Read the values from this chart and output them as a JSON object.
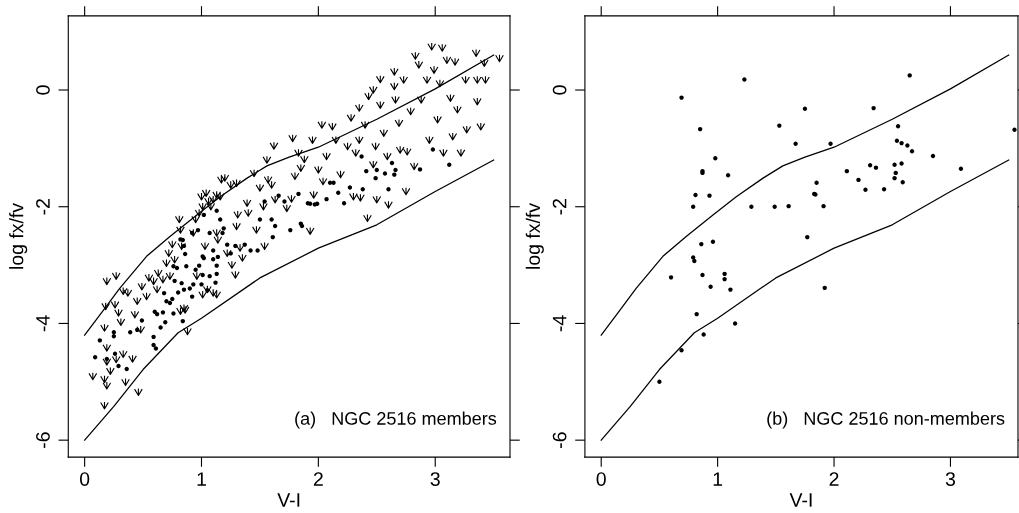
{
  "chart_data": [
    {
      "type": "scatter",
      "xlabel": "V-I",
      "ylabel": "log fx/fv",
      "xlim": [
        -0.14,
        3.64
      ],
      "ylim": [
        -6.29,
        1.27
      ],
      "xticks": [
        0,
        1,
        2,
        3
      ],
      "yticks": [
        -6,
        -4,
        -2,
        0
      ],
      "grid": false,
      "annotations": [
        "(a)   NGC 2516 members"
      ],
      "series": [
        {
          "marker": "circle",
          "color": "#000000",
          "x": [
            0.09,
            0.13,
            0.19,
            0.25,
            0.25,
            0.26,
            0.29,
            0.36,
            0.39,
            0.45,
            0.49,
            0.59,
            0.59,
            0.61,
            0.6,
            0.62,
            0.65,
            0.67,
            0.69,
            0.68,
            0.7,
            0.73,
            0.75,
            0.76,
            0.77,
            0.79,
            0.8,
            0.83,
            0.84,
            0.85,
            0.82,
            0.84,
            0.85,
            0.86,
            0.9,
            0.92,
            0.93,
            0.92,
            0.95,
            0.97,
            1.0,
            1.01,
            1.02,
            1.01,
            1.05,
            1.07,
            1.07,
            1.1,
            1.1,
            1.12,
            1.13,
            1.13,
            1.14,
            1.13,
            1.16,
            1.18,
            1.19,
            1.22,
            1.25,
            1.29,
            1.37,
            1.42,
            1.48,
            1.5,
            1.54,
            1.6,
            1.61,
            1.63,
            1.66,
            1.71,
            1.76,
            1.83,
            1.85,
            1.86,
            1.91,
            1.93,
            1.97,
            1.99,
            2.07,
            2.1,
            2.13,
            2.17,
            2.22,
            2.27,
            2.37,
            2.38,
            2.41,
            2.49,
            2.5,
            2.57,
            2.6,
            2.63,
            2.65,
            2.66,
            2.87,
            2.98,
            3.12,
            0.98,
            0.87,
            0.76,
            1.02
          ],
          "values": [
            -4.58,
            -4.29,
            -4.61,
            -4.22,
            -4.15,
            -4.52,
            -4.73,
            -4.78,
            -4.15,
            -4.11,
            -3.95,
            -4.23,
            -4.37,
            -4.43,
            -3.8,
            -3.84,
            -4.07,
            -3.81,
            -3.98,
            -3.48,
            -3.62,
            -3.65,
            -3.58,
            -3.83,
            -3.27,
            -3.05,
            -3.47,
            -3.31,
            -3.96,
            -3.42,
            -2.56,
            -2.57,
            -2.67,
            -2.81,
            -3.4,
            -3.54,
            -3.33,
            -2.45,
            -3.08,
            -2.4,
            -3.33,
            -3.17,
            -2.14,
            -2.85,
            -3.43,
            -2.45,
            -3.19,
            -2.75,
            -2.9,
            -3.3,
            -3.01,
            -3.15,
            -2.86,
            -2.07,
            -2.22,
            -2.45,
            -2.37,
            -2.65,
            -2.8,
            -2.67,
            -2.65,
            -2.75,
            -2.75,
            -2.22,
            -1.91,
            -2.22,
            -2.52,
            -2.33,
            -1.81,
            -1.91,
            -2.4,
            -1.78,
            -2.29,
            -2.33,
            -1.94,
            -1.95,
            -1.96,
            -1.95,
            -1.87,
            -1.59,
            -1.59,
            -1.76,
            -1.94,
            -1.67,
            -1.14,
            -1.7,
            -1.39,
            -1.51,
            -1.37,
            -1.43,
            -1.7,
            -1.25,
            -1.45,
            -1.37,
            -1.36,
            -1.02,
            -1.28,
            -3.01,
            -3.02,
            -3.02,
            -2.88
          ]
        },
        {
          "marker": "cross",
          "color": "#000000",
          "x": [
            0.07,
            0.17,
            0.19,
            0.17,
            0.19,
            0.22,
            0.27,
            0.33,
            0.35,
            0.41,
            0.46,
            0.19,
            0.17,
            0.18,
            0.19,
            0.27,
            0.26,
            0.29,
            0.31,
            0.33,
            0.37,
            0.43,
            0.45,
            0.48,
            0.49,
            0.53,
            0.55,
            0.59,
            0.62,
            0.63,
            0.67,
            0.7,
            0.72,
            0.73,
            0.75,
            0.77,
            0.81,
            0.82,
            0.83,
            0.86,
            0.88,
            0.82,
            0.85,
            0.93,
            0.95,
            0.98,
            1.0,
            1.01,
            1.04,
            1.06,
            1.08,
            1.1,
            1.13,
            1.16,
            1.17,
            1.2,
            1.25,
            1.3,
            1.13,
            1.1,
            1.05,
            1.01,
            0.96,
            1.03,
            1.13,
            1.14,
            1.22,
            1.26,
            1.29,
            1.31,
            1.3,
            1.33,
            1.35,
            1.39,
            1.4,
            1.45,
            1.47,
            1.5,
            1.53,
            1.54,
            1.56,
            1.57,
            1.6,
            1.63,
            1.62,
            1.73,
            1.77,
            1.78,
            1.8,
            1.83,
            1.85,
            1.88,
            1.93,
            1.95,
            2.0,
            1.96,
            2.04,
            2.03,
            2.07,
            2.12,
            2.15,
            2.19,
            2.25,
            2.28,
            2.3,
            2.32,
            2.35,
            2.35,
            2.36,
            2.4,
            2.42,
            2.43,
            2.47,
            2.47,
            2.49,
            2.5,
            2.53,
            2.53,
            2.56,
            2.59,
            2.6,
            2.65,
            2.65,
            2.66,
            2.69,
            2.7,
            2.73,
            2.75,
            2.76,
            2.79,
            2.83,
            2.82,
            2.86,
            2.88,
            2.93,
            2.95,
            2.97,
            2.99,
            3.02,
            3.04,
            3.06,
            3.07,
            3.1,
            3.13,
            3.15,
            3.17,
            3.19,
            3.22,
            3.26,
            3.27,
            3.35,
            3.36,
            3.36,
            3.39,
            3.42,
            3.43,
            3.55
          ],
          "values": [
            -4.91,
            -5.41,
            -5.07,
            -4.96,
            -4.66,
            -4.82,
            -4.62,
            -4.53,
            -5.01,
            -4.61,
            -5.18,
            -4.42,
            -4.08,
            -3.71,
            -3.28,
            -3.19,
            -3.68,
            -3.82,
            -3.98,
            -3.45,
            -3.48,
            -3.85,
            -3.62,
            -4.11,
            -3.37,
            -3.54,
            -3.22,
            -3.28,
            -3.42,
            -3.14,
            -3.25,
            -2.97,
            -2.8,
            -3.19,
            -2.65,
            -2.91,
            -2.22,
            -2.4,
            -2.68,
            -3.77,
            -4.14,
            -3.79,
            -3.74,
            -2.45,
            -2.22,
            -2.11,
            -1.83,
            -2.0,
            -1.77,
            -1.91,
            -2.0,
            -1.88,
            -1.8,
            -1.83,
            -1.54,
            -1.51,
            -1.63,
            -1.6,
            -3.51,
            -3.48,
            -3.42,
            -3.51,
            -3.19,
            -2.68,
            -2.45,
            -2.57,
            -2.8,
            -3.0,
            -3.17,
            -2.14,
            -2.34,
            -2.71,
            -2.88,
            -1.94,
            -2.11,
            -1.43,
            -2.4,
            -1.68,
            -2.0,
            -2.68,
            -1.2,
            -1.54,
            -1.63,
            -1.88,
            -0.96,
            -2.03,
            -1.87,
            -0.83,
            -1.48,
            -1.08,
            -1.34,
            -1.19,
            -2.42,
            -0.86,
            -1.37,
            -1.8,
            -1.57,
            -0.6,
            -1.14,
            -0.63,
            -0.86,
            -1.45,
            -0.97,
            -0.48,
            -1.83,
            -1.08,
            -0.86,
            -0.31,
            -1.85,
            -0.6,
            -2.2,
            -0.11,
            0.0,
            -1.28,
            -0.97,
            -1.88,
            0.18,
            -0.26,
            -0.74,
            -1.14,
            -1.97,
            0.31,
            0.06,
            -0.17,
            -0.57,
            -1.03,
            0.17,
            -1.74,
            -1.06,
            -0.37,
            0.58,
            -1.31,
            0.43,
            -0.17,
            0.17,
            -0.86,
            0.74,
            0.34,
            -0.51,
            0.11,
            0.72,
            -1.08,
            0.51,
            -0.14,
            -0.8,
            0.48,
            -0.34,
            -1.08,
            0.17,
            -0.68,
            0.63,
            -0.2,
            0.17,
            -0.63,
            0.46,
            0.17,
            0.54
          ]
        },
        {
          "type": "line",
          "marker": "none",
          "color": "#000000",
          "x": [
            0,
            0.15,
            0.3,
            0.53,
            0.73,
            0.96,
            1.16,
            1.39,
            1.56,
            1.75,
            2.0,
            2.5,
            3.0,
            3.5
          ],
          "values": [
            -4.2,
            -3.8,
            -3.4,
            -2.85,
            -2.51,
            -2.14,
            -1.83,
            -1.51,
            -1.3,
            -1.15,
            -0.98,
            -0.5,
            0.02,
            0.6
          ]
        },
        {
          "type": "line",
          "marker": "none",
          "color": "#000000",
          "x": [
            0,
            0.25,
            0.5,
            0.8,
            1,
            1.5,
            2,
            2.5,
            3,
            3.5
          ],
          "values": [
            -6.0,
            -5.42,
            -4.79,
            -4.16,
            -3.91,
            -3.22,
            -2.71,
            -2.31,
            -1.74,
            -1.2
          ]
        }
      ]
    },
    {
      "type": "scatter",
      "xlabel": "V-I",
      "ylabel": "log fx/fv",
      "xlim": [
        -0.14,
        3.58
      ],
      "ylim": [
        -6.29,
        1.27
      ],
      "xticks": [
        0,
        1,
        2,
        3
      ],
      "yticks": [
        -6,
        -4,
        -2,
        0
      ],
      "grid": false,
      "annotations": [
        "(b)   NGC 2516 non-members"
      ],
      "series": [
        {
          "marker": "circle",
          "color": "#000000",
          "x": [
            0.5,
            0.6,
            0.69,
            0.69,
            0.79,
            0.79,
            0.8,
            0.81,
            0.82,
            0.85,
            0.86,
            0.87,
            0.87,
            0.87,
            0.88,
            0.93,
            0.94,
            0.96,
            0.98,
            1.06,
            1.06,
            1.09,
            1.11,
            1.15,
            1.23,
            1.29,
            1.49,
            1.53,
            1.61,
            1.67,
            1.75,
            1.77,
            1.83,
            1.84,
            1.85,
            1.91,
            1.92,
            1.97,
            2.11,
            2.21,
            2.27,
            2.31,
            2.34,
            2.36,
            2.43,
            2.52,
            2.52,
            2.53,
            2.54,
            2.55,
            2.58,
            2.58,
            2.59,
            2.63,
            2.65,
            2.67,
            2.85,
            3.09,
            3.55
          ],
          "values": [
            -5.0,
            -3.21,
            -4.46,
            -0.13,
            -2.0,
            -2.87,
            -2.93,
            -1.8,
            -3.84,
            -0.67,
            -2.64,
            -1.39,
            -1.42,
            -3.17,
            -4.19,
            -1.81,
            -3.37,
            -2.6,
            -1.17,
            -3.15,
            -3.24,
            -1.46,
            -3.42,
            -4.0,
            0.18,
            -2.0,
            -2.0,
            -0.61,
            -1.99,
            -0.92,
            -0.32,
            -2.52,
            -1.78,
            -1.79,
            -1.59,
            -1.99,
            -3.39,
            -0.92,
            -1.39,
            -1.54,
            -1.71,
            -1.29,
            -0.31,
            -1.33,
            -1.7,
            -1.28,
            -1.51,
            -1.42,
            -0.87,
            -0.62,
            -1.26,
            -0.91,
            -1.58,
            -0.95,
            0.25,
            -1.05,
            -1.13,
            -1.35,
            -0.68
          ]
        },
        {
          "type": "line",
          "marker": "none",
          "color": "#000000",
          "x": [
            0,
            0.15,
            0.3,
            0.53,
            0.73,
            0.96,
            1.16,
            1.39,
            1.56,
            1.75,
            2.0,
            2.5,
            3.0,
            3.5
          ],
          "values": [
            -4.2,
            -3.8,
            -3.4,
            -2.85,
            -2.51,
            -2.14,
            -1.83,
            -1.51,
            -1.3,
            -1.15,
            -0.98,
            -0.5,
            0.02,
            0.6
          ]
        },
        {
          "type": "line",
          "marker": "none",
          "color": "#000000",
          "x": [
            0,
            0.25,
            0.5,
            0.8,
            1,
            1.5,
            2,
            2.5,
            3,
            3.5
          ],
          "values": [
            -6.0,
            -5.42,
            -4.79,
            -4.16,
            -3.91,
            -3.22,
            -2.71,
            -2.31,
            -1.74,
            -1.2
          ]
        }
      ]
    }
  ]
}
